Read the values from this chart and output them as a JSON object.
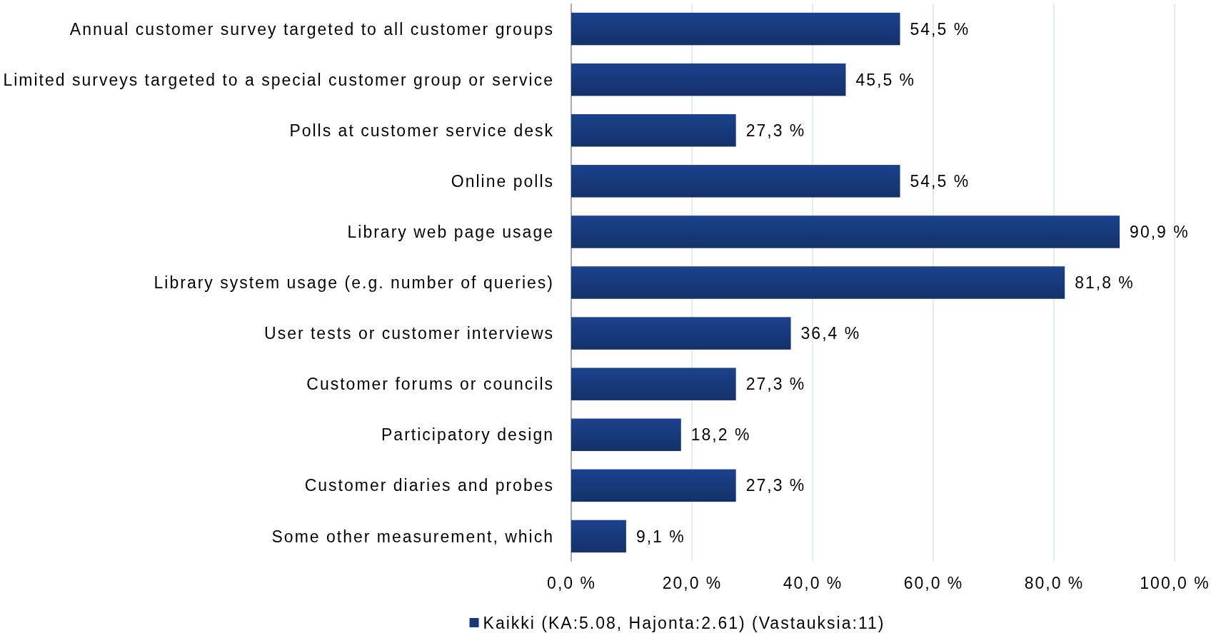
{
  "chart_data": {
    "type": "bar",
    "orientation": "horizontal",
    "categories": [
      "Annual customer survey targeted to all customer groups",
      "Limited surveys targeted to a special customer group or service",
      "Polls at customer service desk",
      "Online polls",
      "Library web page usage",
      "Library system usage (e.g. number of queries)",
      "User tests or customer interviews",
      "Customer forums or councils",
      "Participatory design",
      "Customer diaries and probes",
      "Some other measurement, which"
    ],
    "series": [
      {
        "name": "Kaikki (KA:5.08, Hajonta:2.61) (Vastauksia:11)",
        "color": "#17397a",
        "values": [
          54.5,
          45.5,
          27.3,
          54.5,
          90.9,
          81.8,
          36.4,
          27.3,
          18.2,
          27.3,
          9.1
        ],
        "value_labels": [
          "54,5 %",
          "45,5 %",
          "27,3 %",
          "54,5 %",
          "90,9 %",
          "81,8 %",
          "36,4 %",
          "27,3 %",
          "18,2 %",
          "27,3 %",
          "9,1 %"
        ]
      }
    ],
    "xlim": [
      0,
      100
    ],
    "xticks": [
      {
        "value": 0,
        "label": "0,0 %"
      },
      {
        "value": 20,
        "label": "20,0 %"
      },
      {
        "value": 40,
        "label": "40,0 %"
      },
      {
        "value": 60,
        "label": "60,0 %"
      },
      {
        "value": 80,
        "label": "80,0 %"
      },
      {
        "value": 100,
        "label": "100,0 %"
      }
    ],
    "grid": "x",
    "legend": "bottom"
  }
}
